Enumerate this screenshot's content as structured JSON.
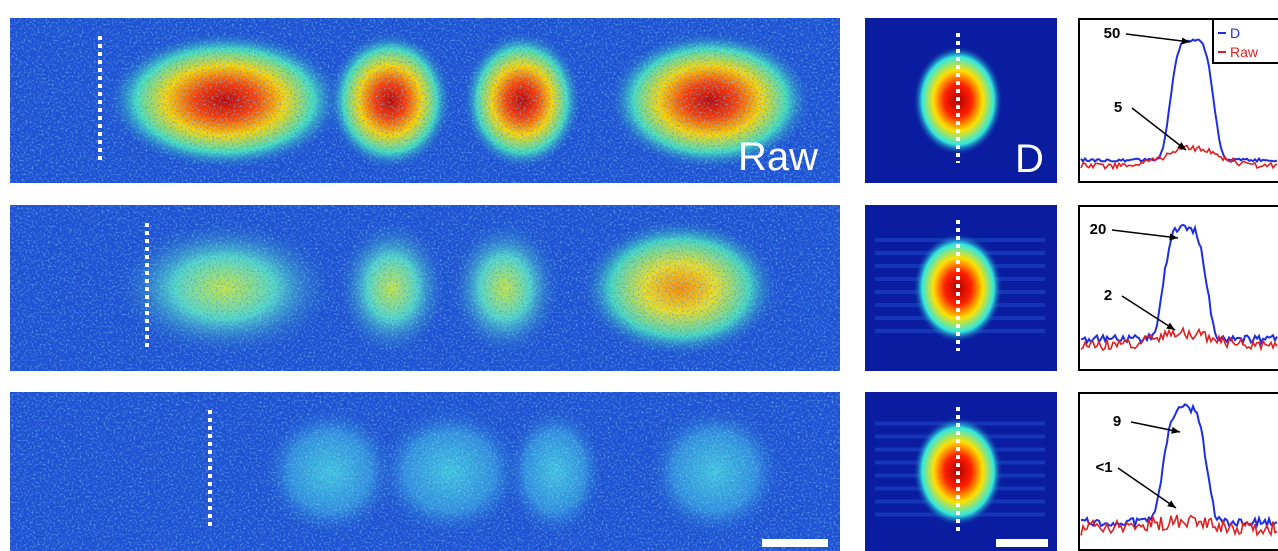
{
  "rows": [
    {
      "raw_label": "Raw",
      "d_label": "D",
      "annotations": [
        "50",
        "5"
      ]
    },
    {
      "annotations": [
        "20",
        "2"
      ]
    },
    {
      "annotations": [
        "9",
        "<1"
      ]
    }
  ],
  "legend": [
    "D",
    "Raw"
  ]
}
